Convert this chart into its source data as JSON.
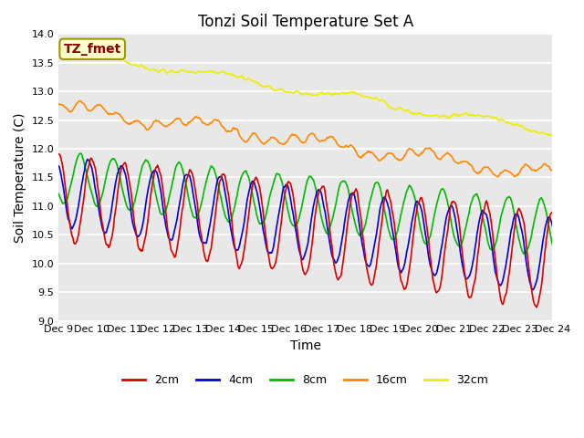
{
  "title": "Tonzi Soil Temperature Set A",
  "xlabel": "Time",
  "ylabel": "Soil Temperature (C)",
  "ylim": [
    9.0,
    14.0
  ],
  "yticks": [
    9.0,
    9.5,
    10.0,
    10.5,
    11.0,
    11.5,
    12.0,
    12.5,
    13.0,
    13.5,
    14.0
  ],
  "xtick_labels": [
    "Dec 9",
    "Dec 10",
    "Dec 11",
    "Dec 12",
    "Dec 13",
    "Dec 14",
    "Dec 15",
    "Dec 16",
    "Dec 17",
    "Dec 18",
    "Dec 19",
    "Dec 20",
    "Dec 21",
    "Dec 22",
    "Dec 23",
    "Dec 24"
  ],
  "colors": {
    "2cm": "#dd0000",
    "4cm": "#0000dd",
    "8cm": "#00bb00",
    "16cm": "#ff8800",
    "32cm": "#eeee00"
  },
  "annotation_text": "TZ_fmet",
  "annotation_bg": "#ffffcc",
  "annotation_border": "#999900",
  "annotation_fg": "#880000",
  "plot_bg": "#e8e8e8",
  "fig_bg": "#ffffff",
  "title_fontsize": 12,
  "axis_label_fontsize": 10,
  "tick_fontsize": 8,
  "legend_fontsize": 9
}
